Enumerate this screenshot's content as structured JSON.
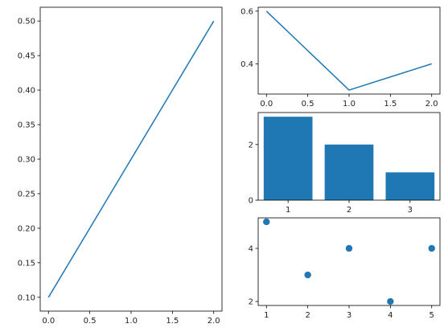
{
  "figure": {
    "background": "#ffffff"
  },
  "chart_data": [
    {
      "id": "line-left",
      "type": "line",
      "title": "",
      "xlabel": "",
      "ylabel": "",
      "color": "#1f77b4",
      "x": [
        0,
        2
      ],
      "y": [
        0.1,
        0.5
      ],
      "xlim": [
        -0.1,
        2.1
      ],
      "ylim": [
        0.08,
        0.52
      ],
      "xticks": [
        0.0,
        0.5,
        1.0,
        1.5,
        2.0
      ],
      "xtick_labels": [
        "0.0",
        "0.5",
        "1.0",
        "1.5",
        "2.0"
      ],
      "yticks": [
        0.1,
        0.15,
        0.2,
        0.25,
        0.3,
        0.35,
        0.4,
        0.45,
        0.5
      ],
      "ytick_labels": [
        "0.10",
        "0.15",
        "0.20",
        "0.25",
        "0.30",
        "0.35",
        "0.40",
        "0.45",
        "0.50"
      ],
      "grid": false
    },
    {
      "id": "line-top-right",
      "type": "line",
      "title": "",
      "xlabel": "",
      "ylabel": "",
      "color": "#1f77b4",
      "x": [
        0,
        1,
        2
      ],
      "y": [
        0.6,
        0.3,
        0.4
      ],
      "xlim": [
        -0.1,
        2.1
      ],
      "ylim": [
        0.285,
        0.615
      ],
      "xticks": [
        0.0,
        0.5,
        1.0,
        1.5,
        2.0
      ],
      "xtick_labels": [
        "0.0",
        "0.5",
        "1.0",
        "1.5",
        "2.0"
      ],
      "yticks": [
        0.4,
        0.6
      ],
      "ytick_labels": [
        "0.4",
        "0.6"
      ],
      "grid": false
    },
    {
      "id": "bar-middle-right",
      "type": "bar",
      "title": "",
      "xlabel": "",
      "ylabel": "",
      "color": "#1f77b4",
      "categories": [
        1,
        2,
        3
      ],
      "values": [
        3,
        2,
        1
      ],
      "xlim": [
        0.51,
        3.49
      ],
      "ylim": [
        0,
        3.15
      ],
      "xticks": [
        1,
        2,
        3
      ],
      "xtick_labels": [
        "1",
        "2",
        "3"
      ],
      "yticks": [
        0,
        2
      ],
      "ytick_labels": [
        "0",
        "2"
      ],
      "grid": false
    },
    {
      "id": "scatter-bottom-right",
      "type": "scatter",
      "title": "",
      "xlabel": "",
      "ylabel": "",
      "color": "#1f77b4",
      "x": [
        1,
        2,
        3,
        4,
        5
      ],
      "y": [
        5,
        3,
        4,
        2,
        4
      ],
      "xlim": [
        0.8,
        5.2
      ],
      "ylim": [
        1.85,
        5.15
      ],
      "xticks": [
        1,
        2,
        3,
        4,
        5
      ],
      "xtick_labels": [
        "1",
        "2",
        "3",
        "4",
        "5"
      ],
      "yticks": [
        2,
        4
      ],
      "ytick_labels": [
        "2",
        "4"
      ],
      "grid": false
    }
  ]
}
